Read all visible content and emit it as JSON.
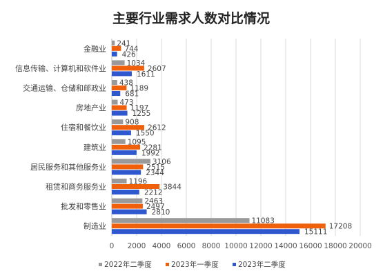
{
  "chart_data": {
    "type": "bar",
    "orientation": "horizontal",
    "title": "主要行业需求人数对比情况",
    "xlabel": "",
    "ylabel": "",
    "xlim": [
      0,
      20000
    ],
    "ticks": [
      0,
      2000,
      4000,
      6000,
      8000,
      10000,
      12000,
      14000,
      16000,
      18000,
      20000
    ],
    "tick_labels": [
      "0",
      "2000",
      "4000",
      "6000",
      "8000",
      "10000",
      "12000",
      "14000",
      "16000",
      "18000",
      "20000"
    ],
    "grid": true,
    "legend_position": "bottom",
    "categories": [
      "金融业",
      "信息传输、计算机和软件业",
      "交通运输、仓储和邮政业",
      "房地产业",
      "住宿和餐饮业",
      "建筑业",
      "居民服务和其他服务业",
      "租赁和商务服务业",
      "批发和零售业",
      "制造业"
    ],
    "series": [
      {
        "name": "2022年二季度",
        "color": "#999999",
        "values": [
          241,
          1034,
          438,
          473,
          908,
          1095,
          3106,
          1196,
          2463,
          11083
        ]
      },
      {
        "name": "2023年一季度",
        "color": "#f0600a",
        "values": [
          744,
          2607,
          1189,
          1197,
          2612,
          2281,
          2515,
          3844,
          2497,
          17208
        ]
      },
      {
        "name": "2023年二季度",
        "color": "#2f58cf",
        "values": [
          426,
          1611,
          681,
          1255,
          1550,
          1992,
          2344,
          2212,
          2810,
          15111
        ]
      }
    ]
  }
}
